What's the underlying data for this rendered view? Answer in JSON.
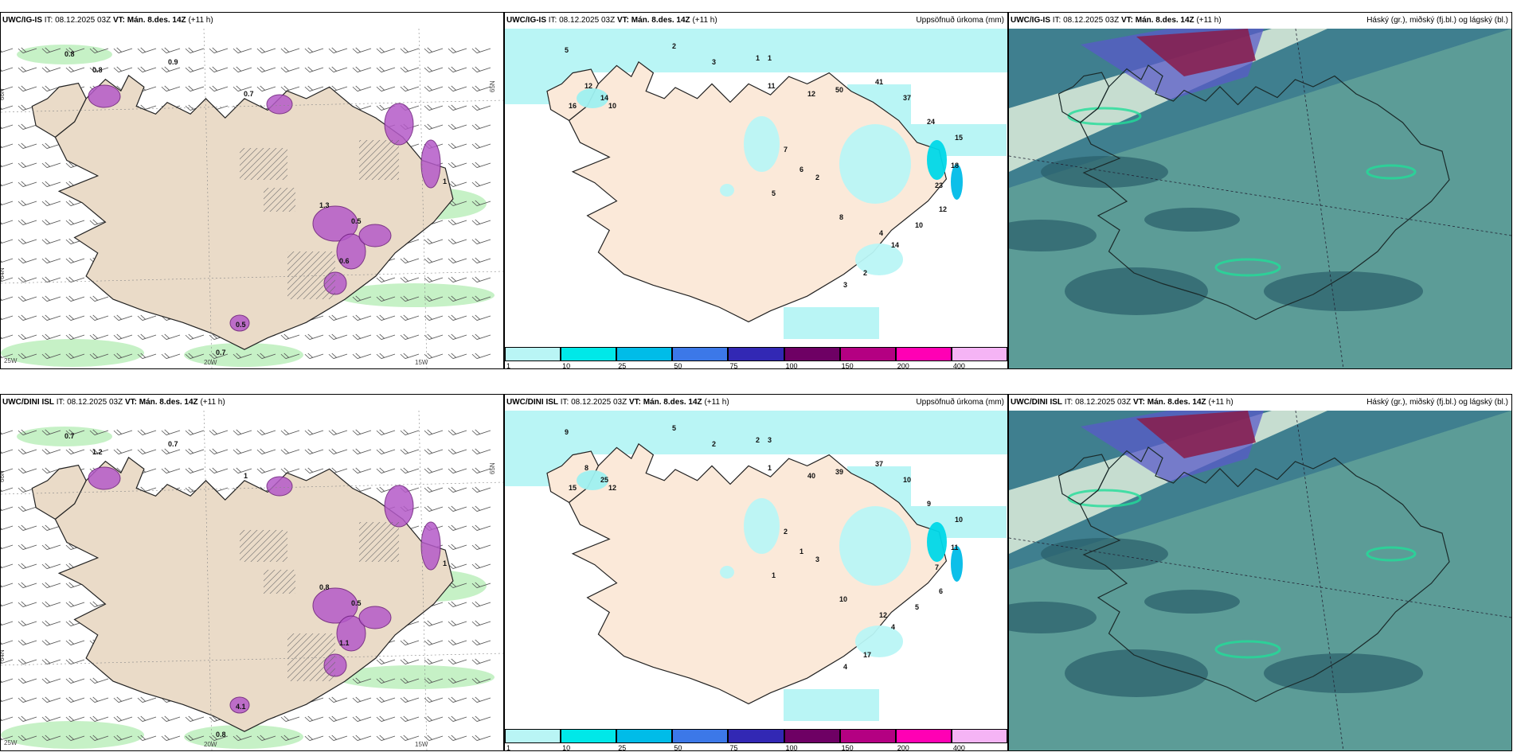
{
  "rows": [
    {
      "model": "UWC/IG-IS",
      "it": "IT: 08.12.2025 03Z",
      "vt_label": "VT:",
      "vt_value": "Mán. 8.des. 14Z",
      "lead": "(+11 h)",
      "left_values": [
        "0.8",
        "0.9",
        "0.8",
        "0.7",
        "1.3",
        "0.5",
        "0.6",
        "0.7",
        "1",
        "0.5"
      ],
      "accum_values": [
        "5",
        "2",
        "3",
        "1",
        "1",
        "11",
        "12",
        "10",
        "16",
        "14",
        "12",
        "50",
        "41",
        "37",
        "24",
        "15",
        "18",
        "23",
        "12",
        "10",
        "4",
        "8",
        "2",
        "3",
        "14",
        "2",
        "7",
        "6",
        "5"
      ],
      "lat_labels": [
        "66N",
        "64N",
        "65N"
      ],
      "lon_labels": [
        "25W",
        "20W",
        "15W"
      ]
    },
    {
      "model": "UWC/DINI ISL",
      "it": "IT: 08.12.2025 03Z",
      "vt_label": "VT:",
      "vt_value": "Mán. 8.des. 14Z",
      "lead": "(+11 h)",
      "left_values": [
        "0.7",
        "0.7",
        "1.2",
        "1",
        "0.8",
        "0.5",
        "1.1",
        "0.8",
        "1",
        "4.1"
      ],
      "accum_values": [
        "9",
        "5",
        "2",
        "2",
        "3",
        "1",
        "8",
        "12",
        "15",
        "25",
        "40",
        "39",
        "37",
        "10",
        "9",
        "10",
        "11",
        "7",
        "6",
        "5",
        "12",
        "10",
        "17",
        "4",
        "4",
        "3",
        "2",
        "1",
        "1"
      ],
      "lat_labels": [
        "66N",
        "64N",
        "65N"
      ],
      "lon_labels": [
        "25W",
        "20W",
        "15W"
      ]
    }
  ],
  "accum_title": "Uppsöfnuð úrkoma (mm)",
  "cloud_title": "Háský (gr.), miðský (fj.bl.) og lágský (bl.)",
  "colorbar": {
    "ticks": [
      "1",
      "10",
      "25",
      "50",
      "75",
      "100",
      "150",
      "200",
      "400"
    ],
    "colors": [
      "#b9f5f5",
      "#00e8e8",
      "#00bce8",
      "#3c78e8",
      "#3228b4",
      "#6e0064",
      "#b40082",
      "#ff00b4",
      "#f5b4f5"
    ]
  }
}
